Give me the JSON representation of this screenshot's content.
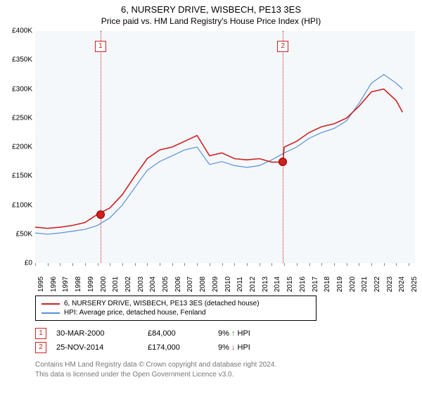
{
  "title": "6, NURSERY DRIVE, WISBECH, PE13 3ES",
  "subtitle": "Price paid vs. HM Land Registry's House Price Index (HPI)",
  "chart": {
    "type": "line",
    "background_color": "#f4f8fb",
    "grid_color": "#ffffff",
    "x": {
      "min": 1995,
      "max": 2025.5,
      "ticks": [
        1995,
        1996,
        1997,
        1998,
        1999,
        2000,
        2001,
        2002,
        2003,
        2004,
        2005,
        2006,
        2007,
        2008,
        2009,
        2010,
        2011,
        2012,
        2013,
        2014,
        2015,
        2016,
        2017,
        2018,
        2019,
        2020,
        2021,
        2022,
        2023,
        2024,
        2025
      ]
    },
    "y": {
      "min": 0,
      "max": 400000,
      "ticks": [
        0,
        50000,
        100000,
        150000,
        200000,
        250000,
        300000,
        350000,
        400000
      ],
      "labels": [
        "£0",
        "£50K",
        "£100K",
        "£150K",
        "£200K",
        "£250K",
        "£300K",
        "£350K",
        "£400K"
      ]
    },
    "series": [
      {
        "name": "6, NURSERY DRIVE, WISBECH, PE13 3ES (detached house)",
        "color": "#d02020",
        "width": 1.6,
        "points": [
          [
            1995,
            62000
          ],
          [
            1996,
            60000
          ],
          [
            1997,
            62000
          ],
          [
            1998,
            65000
          ],
          [
            1999,
            70000
          ],
          [
            2000,
            84000
          ],
          [
            2001,
            95000
          ],
          [
            2002,
            118000
          ],
          [
            2003,
            150000
          ],
          [
            2004,
            180000
          ],
          [
            2005,
            195000
          ],
          [
            2006,
            200000
          ],
          [
            2007,
            210000
          ],
          [
            2008,
            220000
          ],
          [
            2009,
            185000
          ],
          [
            2010,
            190000
          ],
          [
            2011,
            180000
          ],
          [
            2012,
            178000
          ],
          [
            2013,
            180000
          ],
          [
            2014,
            174000
          ],
          [
            2014.9,
            174000
          ],
          [
            2015,
            200000
          ],
          [
            2016,
            210000
          ],
          [
            2017,
            225000
          ],
          [
            2018,
            235000
          ],
          [
            2019,
            240000
          ],
          [
            2020,
            250000
          ],
          [
            2021,
            270000
          ],
          [
            2022,
            295000
          ],
          [
            2023,
            300000
          ],
          [
            2024,
            280000
          ],
          [
            2024.5,
            260000
          ]
        ]
      },
      {
        "name": "HPI: Average price, detached house, Fenland",
        "color": "#5b8fd6",
        "width": 1.2,
        "points": [
          [
            1995,
            52000
          ],
          [
            1996,
            50000
          ],
          [
            1997,
            52000
          ],
          [
            1998,
            55000
          ],
          [
            1999,
            58000
          ],
          [
            2000,
            65000
          ],
          [
            2001,
            78000
          ],
          [
            2002,
            100000
          ],
          [
            2003,
            130000
          ],
          [
            2004,
            160000
          ],
          [
            2005,
            175000
          ],
          [
            2006,
            185000
          ],
          [
            2007,
            195000
          ],
          [
            2008,
            200000
          ],
          [
            2009,
            170000
          ],
          [
            2010,
            175000
          ],
          [
            2011,
            168000
          ],
          [
            2012,
            165000
          ],
          [
            2013,
            168000
          ],
          [
            2014,
            178000
          ],
          [
            2015,
            190000
          ],
          [
            2016,
            200000
          ],
          [
            2017,
            215000
          ],
          [
            2018,
            225000
          ],
          [
            2019,
            232000
          ],
          [
            2020,
            245000
          ],
          [
            2021,
            275000
          ],
          [
            2022,
            310000
          ],
          [
            2023,
            325000
          ],
          [
            2024,
            310000
          ],
          [
            2024.5,
            300000
          ]
        ]
      }
    ],
    "markers": [
      {
        "id": "1",
        "x": 2000.25,
        "sale_y": 84000
      },
      {
        "id": "2",
        "x": 2014.9,
        "sale_y": 174000
      }
    ]
  },
  "legend": [
    {
      "color": "#d02020",
      "label": "6, NURSERY DRIVE, WISBECH, PE13 3ES (detached house)"
    },
    {
      "color": "#5b8fd6",
      "label": "HPI: Average price, detached house, Fenland"
    }
  ],
  "sales": [
    {
      "id": "1",
      "date": "30-MAR-2000",
      "price": "£84,000",
      "pct": "9%",
      "arrow": "↑",
      "arrow_color": "#2a8a2a",
      "tag": "HPI"
    },
    {
      "id": "2",
      "date": "25-NOV-2014",
      "price": "£174,000",
      "pct": "9%",
      "arrow": "↓",
      "arrow_color": "#c03030",
      "tag": "HPI"
    }
  ],
  "footer1": "Contains HM Land Registry data © Crown copyright and database right 2024.",
  "footer2": "This data is licensed under the Open Government Licence v3.0."
}
